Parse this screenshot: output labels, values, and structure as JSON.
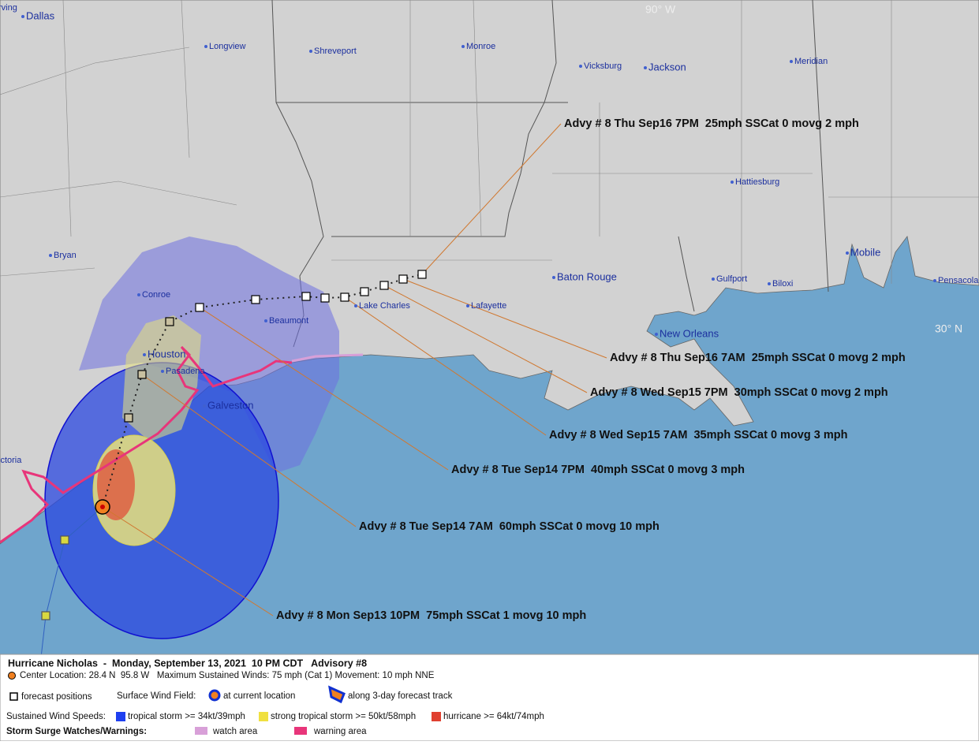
{
  "map": {
    "cities": [
      "rving",
      "Dallas",
      "Longview",
      "Shreveport",
      "Monroe",
      "Vicksburg",
      "Jackson",
      "Meridian",
      "Hattiesburg",
      "Bryan",
      "Conroe",
      "Beaumont",
      "Lake Charles",
      "Lafayette",
      "Baton Rouge",
      "New Orleans",
      "Gulfport",
      "Biloxi",
      "Mobile",
      "Pensacola",
      "Houston",
      "Pasadena",
      "Galveston",
      "ictoria"
    ],
    "gridlines": [
      "90° W",
      "30° N"
    ],
    "advisories": [
      "Advy # 8 Thu Sep16 7PM  25mph SSCat 0 movg 2 mph",
      "Advy # 8 Thu Sep16 7AM  25mph SSCat 0 movg 2 mph",
      "Advy # 8 Wed Sep15 7PM  30mph SSCat 0 movg 2 mph",
      "Advy # 8 Wed Sep15 7AM  35mph SSCat 0 movg 3 mph",
      "Advy # 8 Tue Sep14 7PM  40mph SSCat 0 movg 3 mph",
      "Advy # 8 Tue Sep14 7AM  60mph SSCat 0 movg 10 mph",
      "Advy # 8 Mon Sep13 10PM  75mph SSCat 1 movg 10 mph"
    ]
  },
  "legend": {
    "title": "Hurricane Nicholas  -  Monday, September 13, 2021  10 PM CDT   Advisory #8",
    "center_info": "Center Location: 28.4 N  95.8 W   Maximum Sustained Winds: 75 mph (Cat 1) Movement: 10 mph NNE",
    "forecast_positions": "forecast positions",
    "surface_wind_field": "Surface Wind Field:",
    "at_current_location": "at current location",
    "along_track": "along 3-day forecast track",
    "sustained_wind_speeds": "Sustained Wind Speeds:",
    "tropical_storm": "tropical storm >= 34kt/39mph",
    "strong_tropical_storm": "strong tropical storm >= 50kt/58mph",
    "hurricane": "hurricane >= 64kt/74mph",
    "storm_surge": "Storm Surge Watches/Warnings:",
    "watch_area": "watch area",
    "warning_area": "warning area"
  }
}
